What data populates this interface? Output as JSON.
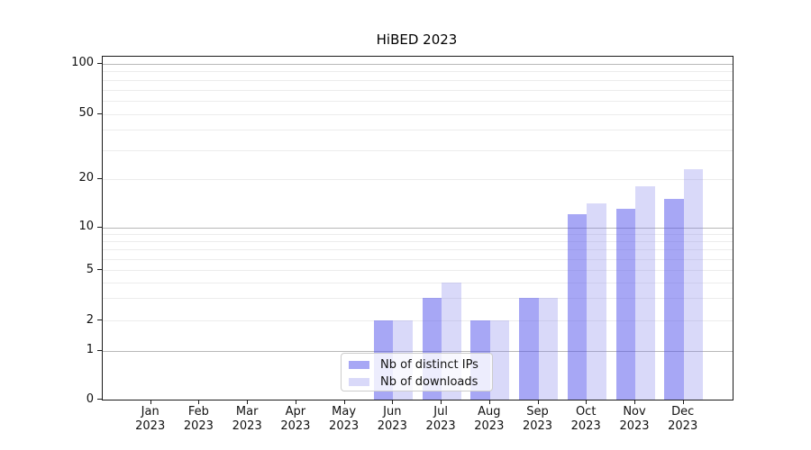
{
  "chart_data": {
    "type": "bar",
    "title": "HiBED 2023",
    "categories": [
      "Jan",
      "Feb",
      "Mar",
      "Apr",
      "May",
      "Jun",
      "Jul",
      "Aug",
      "Sep",
      "Oct",
      "Nov",
      "Dec"
    ],
    "year_label": "2023",
    "series": [
      {
        "name": "Nb of distinct IPs",
        "color": "rgba(80,80,235,0.5)",
        "values": [
          0,
          0,
          0,
          0,
          0,
          2,
          3,
          2,
          3,
          12,
          13,
          15
        ]
      },
      {
        "name": "Nb of downloads",
        "color": "rgba(128,128,235,0.3)",
        "values": [
          0,
          0,
          0,
          0,
          0,
          2,
          4,
          2,
          3,
          14,
          18,
          23
        ]
      }
    ],
    "y_axis": {
      "scale": "symlog",
      "range": [
        0,
        100
      ],
      "tick_values": [
        0,
        1,
        2,
        5,
        10,
        20,
        50,
        100
      ],
      "tick_labels": [
        "0",
        "1",
        "2",
        "5",
        "10",
        "20",
        "50",
        "100"
      ],
      "major_gridlines": [
        1,
        10,
        100
      ],
      "minor_gridlines": [
        2,
        3,
        4,
        5,
        6,
        7,
        8,
        9,
        20,
        30,
        40,
        50,
        60,
        70,
        80,
        90
      ]
    },
    "legend": {
      "position": "lower center",
      "entries": [
        "Nb of distinct IPs",
        "Nb of downloads"
      ]
    },
    "grid": true
  },
  "colors": {
    "bar_distinct_ips": "rgba(80,80,235,0.5)",
    "bar_downloads": "rgba(128,128,235,0.3)",
    "major_grid": "#b8b8b8",
    "minor_grid": "#ececec",
    "spine": "#1a1a1a",
    "text": "#111111"
  }
}
